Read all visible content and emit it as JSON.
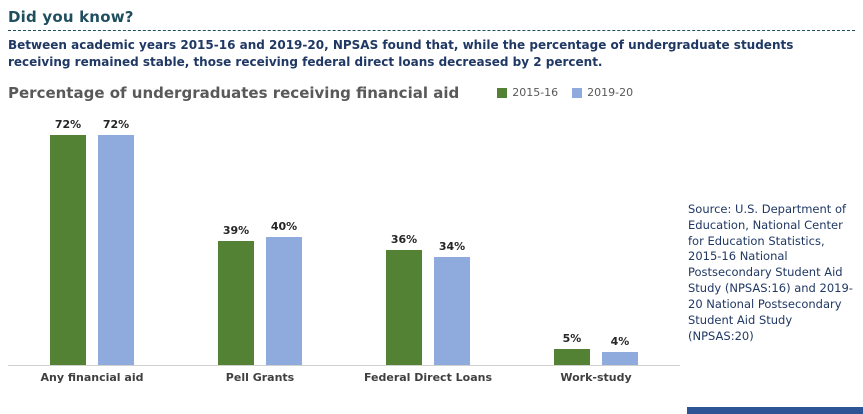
{
  "page": {
    "header_title": "Did you know?",
    "intro_text": "Between academic years 2015-16 and 2019-20, NPSAS found that, while the percentage of undergraduate students receiving remained stable, those receiving federal direct loans decreased by 2 percent.",
    "source_text": "Source: U.S. Department of Education, National Center for Education Statistics, 2015-16 National Postsecondary Student Aid Study (NPSAS:16) and 2019-20 National Postsecondary Student Aid Study (NPSAS:20)"
  },
  "chart_data": {
    "type": "bar",
    "title": "Percentage of undergraduates receiving financial aid",
    "categories": [
      "Any financial aid",
      "Pell Grants",
      "Federal Direct Loans",
      "Work-study"
    ],
    "series": [
      {
        "name": "2015-16",
        "color": "#548235",
        "values": [
          72,
          39,
          36,
          5
        ]
      },
      {
        "name": "2019-20",
        "color": "#8faadc",
        "values": [
          72,
          40,
          34,
          4
        ]
      }
    ],
    "value_suffix": "%",
    "ylim": [
      0,
      75
    ],
    "grid": false,
    "legend_position": "top-right"
  },
  "colors": {
    "header_teal": "#1f4e5f",
    "body_navy": "#203864",
    "title_gray": "#595959",
    "series_green": "#548235",
    "series_blue": "#8faadc",
    "footer_blue": "#2f5496",
    "axis_gray": "#d0d0d0"
  }
}
